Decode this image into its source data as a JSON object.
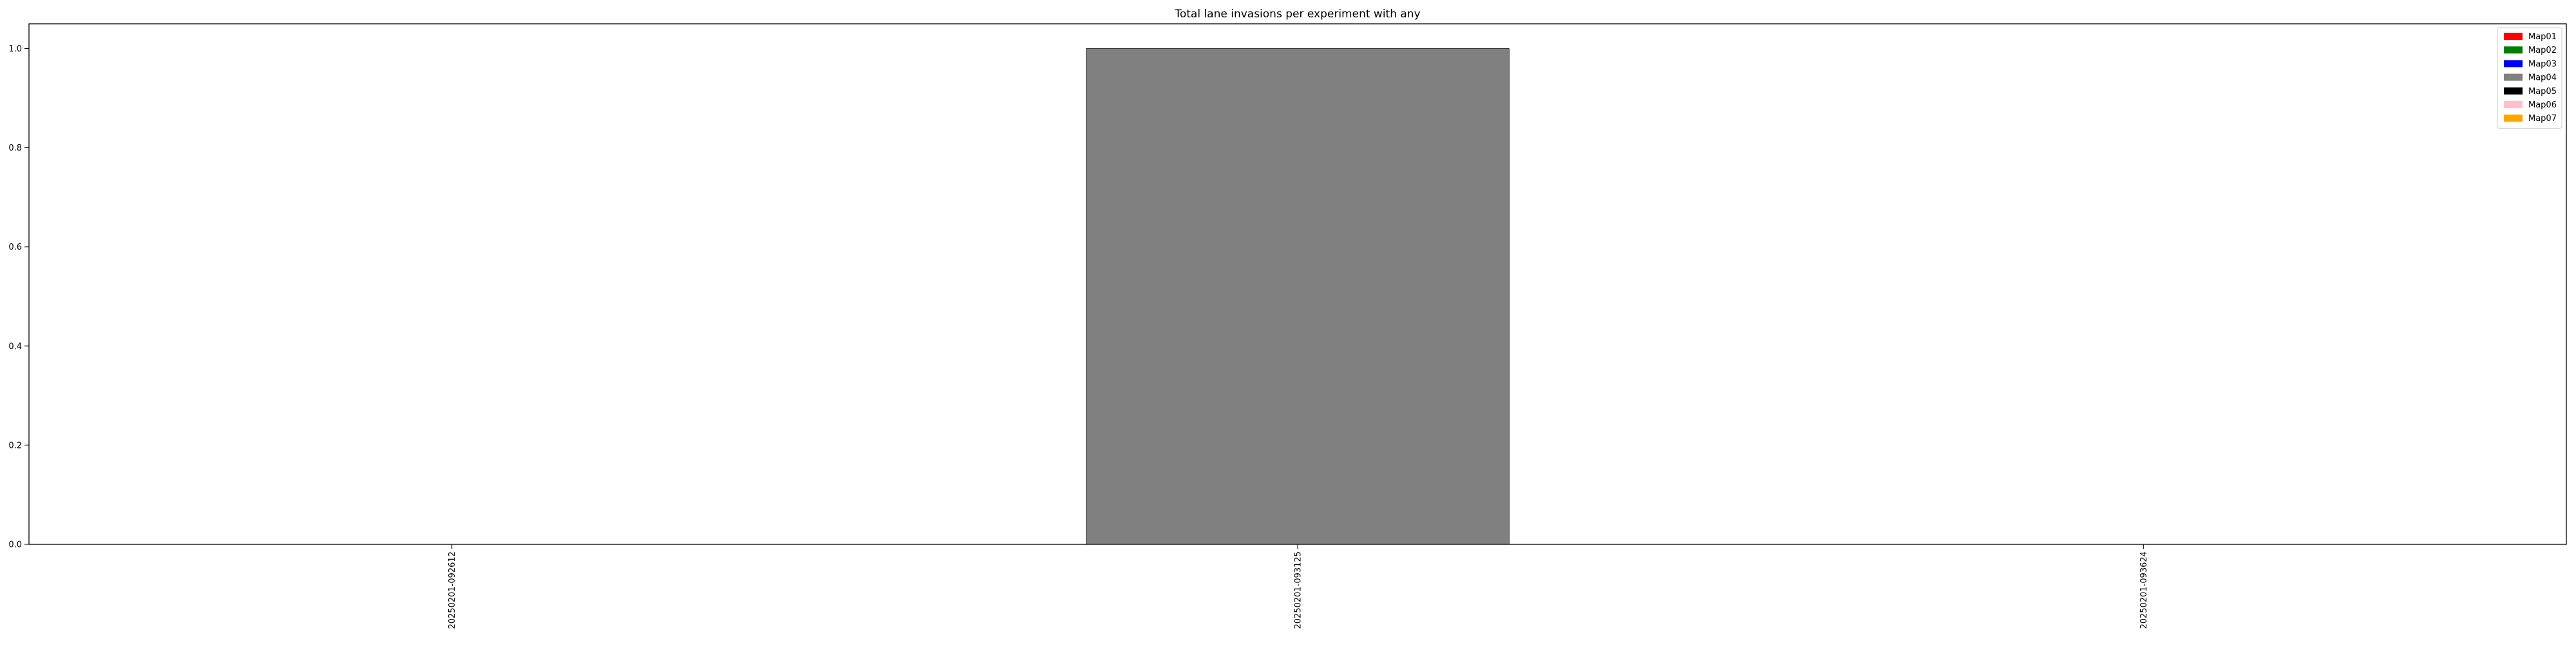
{
  "chart_data": {
    "type": "bar",
    "title": "Total lane invasions per experiment with any",
    "xlabel": "",
    "ylabel": "",
    "categories": [
      "20250201-092612",
      "20250201-093125",
      "20250201-093624"
    ],
    "ylim": [
      0,
      1.05
    ],
    "yticks": [
      "0.0",
      "0.2",
      "0.4",
      "0.6",
      "0.8",
      "1.0"
    ],
    "stacked": true,
    "series": [
      {
        "name": "Map01",
        "color": "#ff0000",
        "values": [
          0,
          0,
          0
        ]
      },
      {
        "name": "Map02",
        "color": "#008000",
        "values": [
          0,
          0,
          0
        ]
      },
      {
        "name": "Map03",
        "color": "#0000ff",
        "values": [
          0,
          0,
          0
        ]
      },
      {
        "name": "Map04",
        "color": "#808080",
        "values": [
          0,
          1,
          0
        ]
      },
      {
        "name": "Map05",
        "color": "#000000",
        "values": [
          0,
          0,
          0
        ]
      },
      {
        "name": "Map06",
        "color": "#ffc0cb",
        "values": [
          0,
          0,
          0
        ]
      },
      {
        "name": "Map07",
        "color": "#ffa500",
        "values": [
          0,
          0,
          0
        ]
      }
    ],
    "legend_position": "top-right",
    "grid": false
  }
}
